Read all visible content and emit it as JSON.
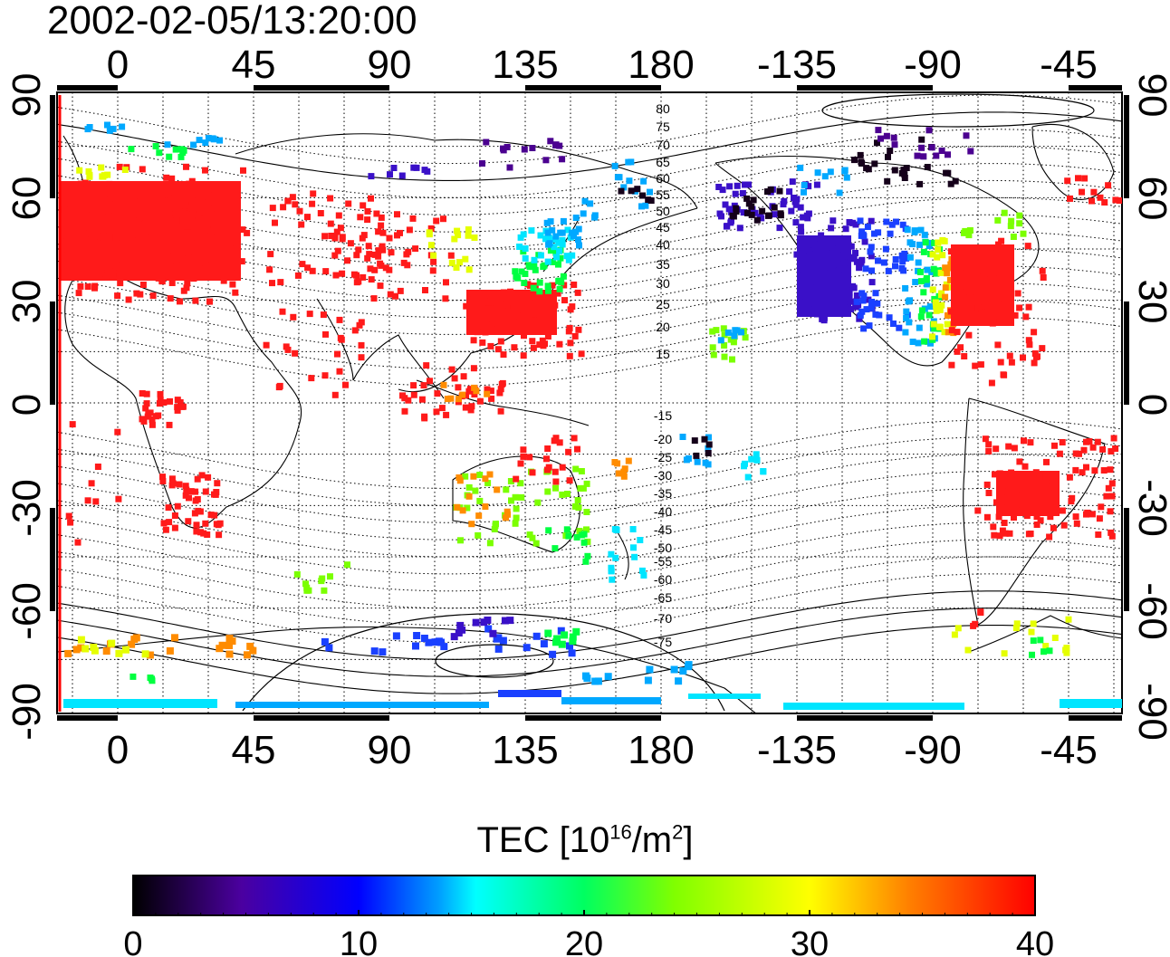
{
  "title": "2002-02-05/13:20:00",
  "map": {
    "top_lon_labels": [
      "0",
      "45",
      "90",
      "135",
      "180",
      "-135",
      "-90",
      "-45"
    ],
    "bottom_lon_labels": [
      "0",
      "45",
      "90",
      "135",
      "180",
      "-135",
      "-90",
      "-45"
    ],
    "left_lat_labels": [
      "90",
      "60",
      "30",
      "0",
      "-30",
      "-60",
      "-90"
    ],
    "right_lat_labels": [
      "90",
      "60",
      "30",
      "0",
      "-30",
      "-60",
      "-90"
    ],
    "contour_labels_north": [
      "80",
      "75",
      "70",
      "65",
      "60",
      "55",
      "50",
      "45",
      "40",
      "35",
      "30",
      "25",
      "20",
      "15"
    ],
    "contour_labels_south": [
      "-15",
      "-20",
      "-25",
      "-30",
      "-35",
      "-40",
      "-45",
      "-50",
      "-55",
      "-60",
      "-65",
      "-70",
      "-75"
    ],
    "tec_regions": [
      {
        "name": "europe",
        "color": "#ff1a1a"
      },
      {
        "name": "east-asia",
        "color": "#ff1a1a"
      },
      {
        "name": "north-america-west",
        "color": "#3a10c8"
      },
      {
        "name": "north-america-east",
        "color": "#ff1a1a"
      },
      {
        "name": "south-america",
        "color": "#ff1a1a"
      },
      {
        "name": "africa",
        "color": "#ff1a1a"
      },
      {
        "name": "australia",
        "color": "#7bff00"
      },
      {
        "name": "antarctica",
        "color": "#00e5ff"
      }
    ]
  },
  "colorbar": {
    "label_main": "TEC  [10",
    "label_exp1": "16",
    "label_mid": "/m",
    "label_exp2": "2",
    "label_end": "]",
    "ticks": [
      "0",
      "10",
      "20",
      "30",
      "40"
    ],
    "min": 0,
    "max": 40,
    "colors": [
      "#000000",
      "#4b00a0",
      "#0000ff",
      "#00a0ff",
      "#00ffff",
      "#00ff60",
      "#80ff00",
      "#ffff00",
      "#ff8000",
      "#ff0000"
    ]
  }
}
